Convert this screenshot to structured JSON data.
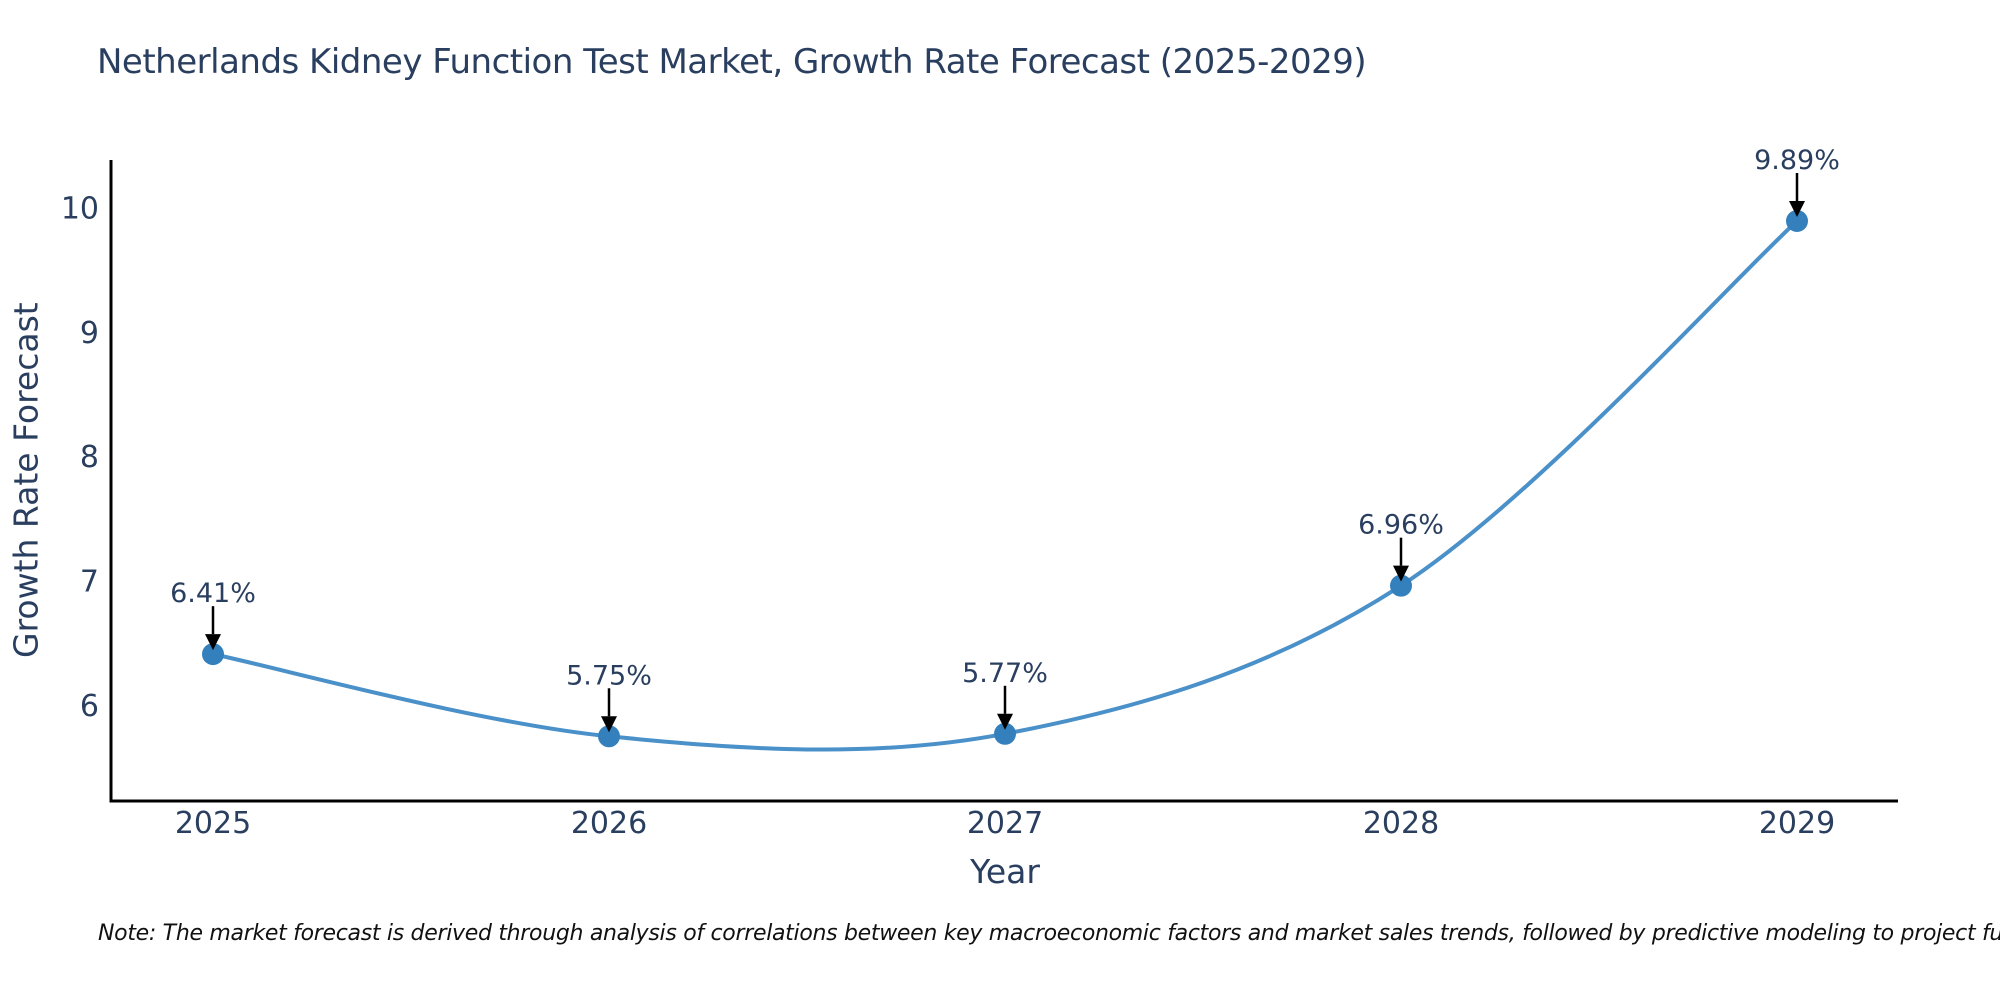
{
  "title": "Netherlands Kidney Function Test Market, Growth Rate Forecast (2025-2029)",
  "note": "Note: The market forecast is derived through analysis of correlations between key macroeconomic factors and market sales trends, followed by predictive modeling to project future sales",
  "chart_data": {
    "type": "line",
    "title": "Netherlands Kidney Function Test Market, Growth Rate Forecast (2025-2029)",
    "xlabel": "Year",
    "ylabel": "Growth Rate Forecast",
    "categories": [
      "2025",
      "2026",
      "2027",
      "2028",
      "2029"
    ],
    "values": [
      6.41,
      5.75,
      5.77,
      6.96,
      9.89
    ],
    "point_labels": [
      "6.41%",
      "5.75%",
      "5.77%",
      "6.96%",
      "9.89%"
    ],
    "y_ticks": [
      6,
      7,
      8,
      9,
      10
    ],
    "ylim": [
      5.23,
      10.38
    ],
    "line_shape": "spline",
    "grid": false,
    "legend": "none",
    "markers": true,
    "annotation_arrows": true,
    "colors": {
      "line": "#4a90c9",
      "marker": "#3480bd",
      "text": "#2a3f5f",
      "axis": "#000000",
      "arrow": "#000000",
      "background": "#ffffff"
    }
  }
}
